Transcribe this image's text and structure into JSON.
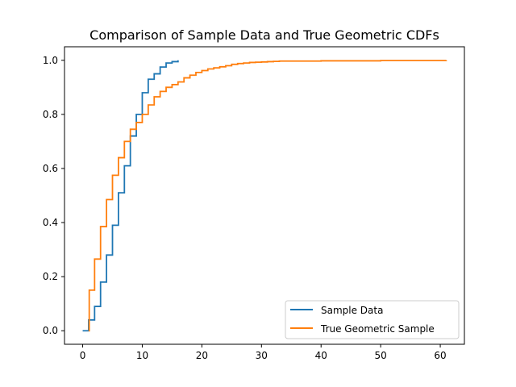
{
  "chart_data": {
    "type": "line",
    "title": "Comparison of Sample Data and True Geometric CDFs",
    "xlabel": "",
    "ylabel": "",
    "xlim": [
      -3.05,
      64.05
    ],
    "ylim": [
      -0.05,
      1.05
    ],
    "xticks": [
      0,
      10,
      20,
      30,
      40,
      50,
      60
    ],
    "yticks": [
      0.0,
      0.2,
      0.4,
      0.6,
      0.8,
      1.0
    ],
    "xtick_labels": [
      "0",
      "10",
      "20",
      "30",
      "40",
      "50",
      "60"
    ],
    "ytick_labels": [
      "0.0",
      "0.2",
      "0.4",
      "0.6",
      "0.8",
      "1.0"
    ],
    "grid": false,
    "legend_position": "lower-right",
    "step": "post",
    "series": [
      {
        "name": "Sample Data",
        "color": "#1f77b4",
        "x": [
          0,
          1,
          2,
          3,
          4,
          5,
          6,
          7,
          8,
          9,
          10,
          11,
          12,
          13,
          14,
          15,
          16
        ],
        "y": [
          0.0,
          0.04,
          0.09,
          0.18,
          0.28,
          0.39,
          0.51,
          0.61,
          0.72,
          0.8,
          0.88,
          0.93,
          0.95,
          0.975,
          0.99,
          0.995,
          1.0
        ]
      },
      {
        "name": "True Geometric Sample",
        "color": "#ff7f0e",
        "x": [
          1,
          1.1,
          2,
          3,
          4,
          5,
          6,
          7,
          8,
          9,
          10,
          11,
          12,
          13,
          14,
          15,
          16,
          17,
          18,
          19,
          20,
          21,
          22,
          23,
          24,
          25,
          26,
          27,
          28,
          29,
          30,
          31,
          32,
          33,
          40,
          50,
          61
        ],
        "y": [
          0.0,
          0.15,
          0.265,
          0.385,
          0.485,
          0.575,
          0.64,
          0.7,
          0.745,
          0.77,
          0.8,
          0.835,
          0.865,
          0.885,
          0.9,
          0.91,
          0.92,
          0.935,
          0.945,
          0.955,
          0.962,
          0.968,
          0.972,
          0.976,
          0.98,
          0.985,
          0.988,
          0.99,
          0.992,
          0.993,
          0.994,
          0.995,
          0.996,
          0.997,
          0.998,
          0.999,
          1.0
        ]
      }
    ]
  }
}
